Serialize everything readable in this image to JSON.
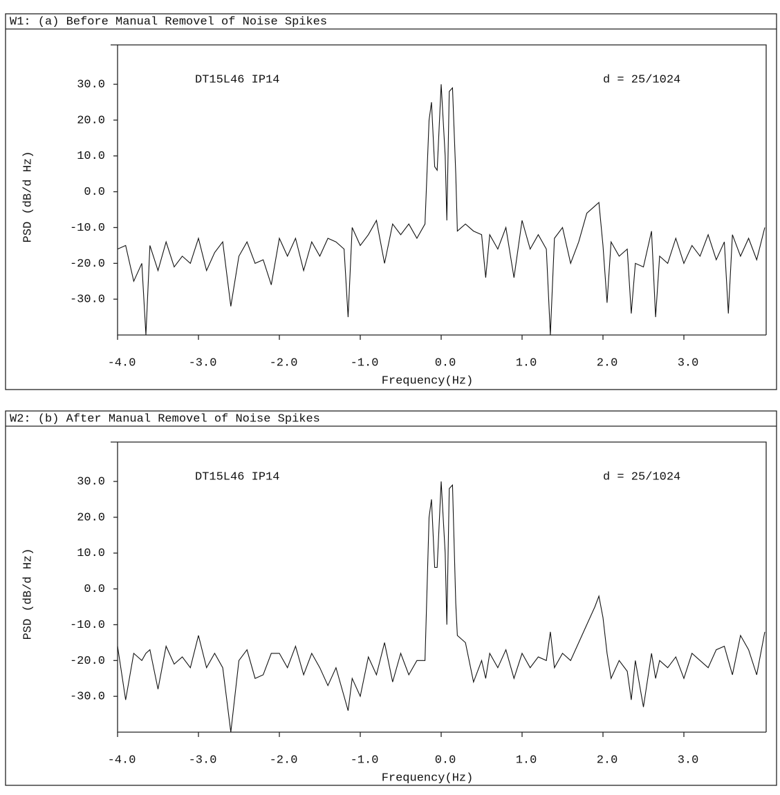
{
  "chart_data": [
    {
      "type": "line",
      "title": "W1: (a) Before Manual Removel of Noise Spikes",
      "annotations": [
        "DT15L46 IP14",
        "d = 25/1024"
      ],
      "xlabel": "Frequency(Hz)",
      "ylabel": "PSD (dB/d Hz)",
      "color": "#111111",
      "x": [
        -4.0,
        -3.9,
        -3.8,
        -3.7,
        -3.65,
        -3.6,
        -3.5,
        -3.4,
        -3.3,
        -3.2,
        -3.1,
        -3.0,
        -2.9,
        -2.8,
        -2.7,
        -2.6,
        -2.5,
        -2.4,
        -2.3,
        -2.2,
        -2.1,
        -2.0,
        -1.9,
        -1.8,
        -1.7,
        -1.6,
        -1.5,
        -1.4,
        -1.3,
        -1.2,
        -1.15,
        -1.1,
        -1.0,
        -0.9,
        -0.8,
        -0.7,
        -0.6,
        -0.5,
        -0.4,
        -0.3,
        -0.2,
        -0.15,
        -0.12,
        -0.08,
        -0.05,
        0.0,
        0.05,
        0.07,
        0.1,
        0.14,
        0.18,
        0.2,
        0.3,
        0.4,
        0.5,
        0.55,
        0.6,
        0.7,
        0.8,
        0.9,
        1.0,
        1.1,
        1.2,
        1.3,
        1.35,
        1.4,
        1.5,
        1.6,
        1.7,
        1.8,
        1.9,
        1.95,
        2.0,
        2.05,
        2.1,
        2.2,
        2.3,
        2.35,
        2.4,
        2.5,
        2.6,
        2.65,
        2.7,
        2.8,
        2.9,
        3.0,
        3.1,
        3.2,
        3.3,
        3.4,
        3.5,
        3.55,
        3.6,
        3.7,
        3.8,
        3.9,
        4.0
      ],
      "values": [
        -16,
        -15,
        -25,
        -20,
        -40,
        -15,
        -22,
        -14,
        -21,
        -18,
        -20,
        -13,
        -22,
        -17,
        -14,
        -32,
        -18,
        -14,
        -20,
        -19,
        -26,
        -13,
        -18,
        -13,
        -22,
        -14,
        -18,
        -13,
        -14,
        -16,
        -35,
        -10,
        -15,
        -12,
        -8,
        -20,
        -9,
        -12,
        -9,
        -13,
        -9,
        20,
        25,
        7,
        6,
        30,
        10,
        -8,
        28,
        29,
        5,
        -11,
        -9,
        -11,
        -12,
        -24,
        -12,
        -16,
        -10,
        -24,
        -8,
        -16,
        -12,
        -16,
        -40,
        -13,
        -10,
        -20,
        -14,
        -6,
        -4,
        -3,
        -15,
        -31,
        -14,
        -18,
        -16,
        -34,
        -20,
        -21,
        -11,
        -35,
        -18,
        -20,
        -13,
        -20,
        -15,
        -18,
        -12,
        -19,
        -14,
        -34,
        -12,
        -18,
        -13,
        -19,
        -10
      ],
      "xlim": [
        -4,
        4
      ],
      "ylim": [
        -40,
        41
      ],
      "xticks": [
        {
          "value": -4,
          "label": "-4.0"
        },
        {
          "value": -3,
          "label": "-3.0"
        },
        {
          "value": -2,
          "label": "-2.0"
        },
        {
          "value": -1,
          "label": "-1.0"
        },
        {
          "value": 0,
          "label": "0.0"
        },
        {
          "value": 1,
          "label": "1.0"
        },
        {
          "value": 2,
          "label": "2.0"
        },
        {
          "value": 3,
          "label": "3.0"
        }
      ],
      "yticks": [
        {
          "value": -30,
          "label": "-30.0"
        },
        {
          "value": -20,
          "label": "-20.0"
        },
        {
          "value": -10,
          "label": "-10.0"
        },
        {
          "value": 0,
          "label": "0.0"
        },
        {
          "value": 10,
          "label": "10.0"
        },
        {
          "value": 20,
          "label": "20.0"
        },
        {
          "value": 30,
          "label": "30.0"
        }
      ]
    },
    {
      "type": "line",
      "title": "W2: (b) After Manual Removel of Noise Spikes",
      "annotations": [
        "DT15L46 IP14",
        "d = 25/1024"
      ],
      "xlabel": "Frequency(Hz)",
      "ylabel": "PSD (dB/d Hz)",
      "color": "#111111",
      "x": [
        -4.0,
        -3.9,
        -3.8,
        -3.7,
        -3.65,
        -3.6,
        -3.5,
        -3.4,
        -3.3,
        -3.2,
        -3.1,
        -3.0,
        -2.9,
        -2.8,
        -2.7,
        -2.6,
        -2.5,
        -2.4,
        -2.3,
        -2.2,
        -2.1,
        -2.0,
        -1.9,
        -1.8,
        -1.7,
        -1.6,
        -1.5,
        -1.4,
        -1.3,
        -1.2,
        -1.15,
        -1.1,
        -1.0,
        -0.9,
        -0.8,
        -0.7,
        -0.6,
        -0.5,
        -0.4,
        -0.3,
        -0.2,
        -0.15,
        -0.12,
        -0.08,
        -0.05,
        0.0,
        0.05,
        0.07,
        0.1,
        0.14,
        0.18,
        0.2,
        0.3,
        0.4,
        0.5,
        0.55,
        0.6,
        0.7,
        0.8,
        0.9,
        1.0,
        1.1,
        1.2,
        1.3,
        1.35,
        1.4,
        1.5,
        1.6,
        1.7,
        1.8,
        1.9,
        1.95,
        2.0,
        2.05,
        2.1,
        2.2,
        2.3,
        2.35,
        2.4,
        2.5,
        2.6,
        2.65,
        2.7,
        2.8,
        2.9,
        3.0,
        3.1,
        3.2,
        3.3,
        3.4,
        3.5,
        3.55,
        3.6,
        3.7,
        3.8,
        3.9,
        4.0
      ],
      "values": [
        -16,
        -31,
        -18,
        -20,
        -18,
        -17,
        -28,
        -16,
        -21,
        -19,
        -22,
        -13,
        -22,
        -18,
        -22,
        -40,
        -20,
        -17,
        -25,
        -24,
        -18,
        -18,
        -22,
        -16,
        -24,
        -18,
        -22,
        -27,
        -22,
        -30,
        -34,
        -25,
        -30,
        -19,
        -24,
        -15,
        -26,
        -18,
        -24,
        -20,
        -20,
        20,
        25,
        6,
        6,
        30,
        10,
        -10,
        28,
        29,
        -4,
        -13,
        -15,
        -26,
        -20,
        -25,
        -18,
        -22,
        -17,
        -25,
        -18,
        -22,
        -19,
        -20,
        -12,
        -22,
        -18,
        -20,
        -15,
        -10,
        -5,
        -2,
        -8,
        -18,
        -25,
        -20,
        -23,
        -31,
        -20,
        -33,
        -18,
        -25,
        -20,
        -22,
        -19,
        -25,
        -18,
        -20,
        -22,
        -17,
        -16,
        -20,
        -24,
        -13,
        -17,
        -24,
        -12
      ],
      "xlim": [
        -4,
        4
      ],
      "ylim": [
        -40,
        41
      ],
      "xticks": [
        {
          "value": -4,
          "label": "-4.0"
        },
        {
          "value": -3,
          "label": "-3.0"
        },
        {
          "value": -2,
          "label": "-2.0"
        },
        {
          "value": -1,
          "label": "-1.0"
        },
        {
          "value": 0,
          "label": "0.0"
        },
        {
          "value": 1,
          "label": "1.0"
        },
        {
          "value": 2,
          "label": "2.0"
        },
        {
          "value": 3,
          "label": "3.0"
        }
      ],
      "yticks": [
        {
          "value": -30,
          "label": "-30.0"
        },
        {
          "value": -20,
          "label": "-20.0"
        },
        {
          "value": -10,
          "label": "-10.0"
        },
        {
          "value": 0,
          "label": "0.0"
        },
        {
          "value": 10,
          "label": "10.0"
        },
        {
          "value": 20,
          "label": "20.0"
        },
        {
          "value": 30,
          "label": "30.0"
        }
      ]
    }
  ]
}
